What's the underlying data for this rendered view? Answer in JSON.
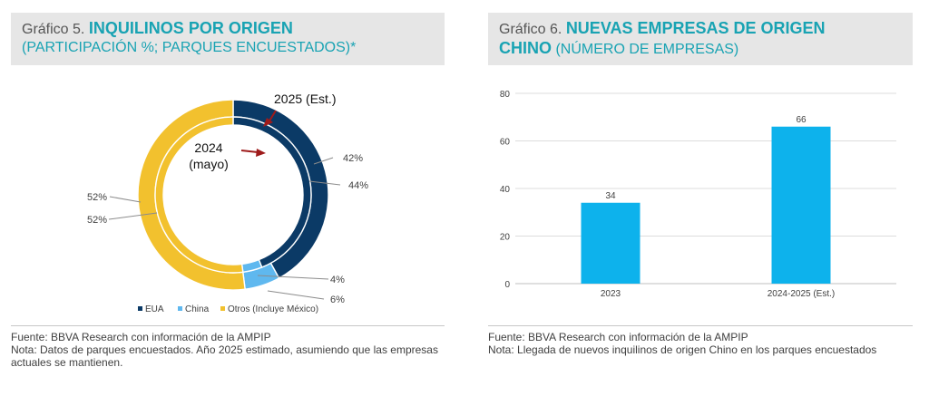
{
  "charts": [
    {
      "label": "Gráfico 5.",
      "title": "INQUILINOS POR ORIGEN",
      "subtitle": "(PARTICIPACIÓN %; PARQUES ENCUESTADOS)*",
      "source": "Fuente: BBVA Research con información de la AMPIP",
      "note": "Nota: Datos de parques encuestados. Año 2025 estimado, asumiendo que las empresas actuales se mantienen."
    },
    {
      "label": "Gráfico 6.",
      "title_line1": "NUEVAS EMPRESAS DE ORIGEN",
      "title_line2": "CHINO",
      "subtitle": "(NÚMERO DE EMPRESAS)",
      "source": "Fuente: BBVA Research con información de la AMPIP",
      "note": "Nota: Llegada de nuevos inquilinos de origen Chino en los parques encuestados"
    }
  ],
  "chart_data": [
    {
      "type": "pie",
      "style": "double-donut",
      "categories": [
        "EUA",
        "China",
        "Otros (Incluye México)"
      ],
      "colors": [
        "#0b3a66",
        "#5fb8ef",
        "#f2c12e"
      ],
      "series": [
        {
          "name": "2025 (Est.)",
          "ring": "outer",
          "values": [
            42,
            6,
            52
          ]
        },
        {
          "name": "2024 (mayo)",
          "ring": "inner",
          "values": [
            44,
            4,
            52
          ]
        }
      ],
      "annotations": {
        "outer": "2025 (Est.)",
        "inner_line1": "2024",
        "inner_line2": "(mayo)"
      },
      "data_labels": {
        "eua_outer": "42%",
        "eua_inner": "44%",
        "china_inner": "4%",
        "china_outer": "6%",
        "otros_outer": "52%",
        "otros_inner": "52%"
      },
      "legend": "bottom"
    },
    {
      "type": "bar",
      "categories": [
        "2023",
        "2024-2025 (Est.)"
      ],
      "values": [
        34,
        66
      ],
      "value_labels": [
        "34",
        "66"
      ],
      "ylim": [
        0,
        80
      ],
      "yticks": [
        0,
        20,
        40,
        60,
        80
      ],
      "ytick_labels": [
        "0",
        "20",
        "40",
        "60",
        "80"
      ],
      "color": "#0db2ec",
      "grid": true
    }
  ]
}
